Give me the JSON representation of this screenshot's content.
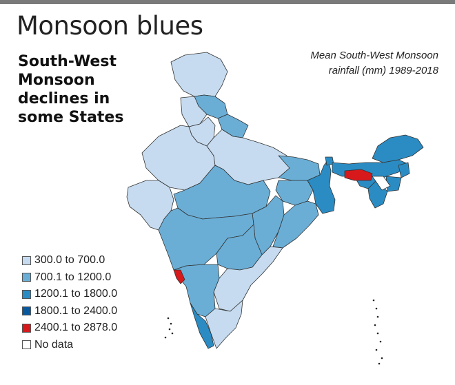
{
  "title": "Monsoon blues",
  "subtitle": "South-West Monsoon declines in some States",
  "caption": "Mean South-West Monsoon rainfall (mm) 1989-2018",
  "legend": [
    {
      "label": "300.0 to 700.0",
      "color": "#c6dbef"
    },
    {
      "label": "700.1 to 1200.0",
      "color": "#6aaed6"
    },
    {
      "label": "1200.1 to 1800.0",
      "color": "#2b8cc4"
    },
    {
      "label": "1800.1 to 2400.0",
      "color": "#08589e"
    },
    {
      "label": "2400.1 to 2878.0",
      "color": "#d7191c"
    },
    {
      "label": "No data",
      "color": "#ffffff"
    }
  ],
  "map": {
    "boundary_color": "#333333",
    "regions": [
      {
        "name": "Jammu and Kashmir",
        "class": 0
      },
      {
        "name": "Himachal Pradesh",
        "class": 1
      },
      {
        "name": "Punjab",
        "class": 0
      },
      {
        "name": "Uttarakhand",
        "class": 1
      },
      {
        "name": "Haryana",
        "class": 0
      },
      {
        "name": "Rajasthan",
        "class": 0
      },
      {
        "name": "Uttar Pradesh",
        "class": 0
      },
      {
        "name": "Gujarat",
        "class": 0
      },
      {
        "name": "Madhya Pradesh",
        "class": 1
      },
      {
        "name": "Bihar",
        "class": 1
      },
      {
        "name": "Jharkhand",
        "class": 1
      },
      {
        "name": "West Bengal",
        "class": 2
      },
      {
        "name": "Chhattisgarh",
        "class": 1
      },
      {
        "name": "Odisha",
        "class": 1
      },
      {
        "name": "Maharashtra",
        "class": 1
      },
      {
        "name": "Telangana",
        "class": 1
      },
      {
        "name": "Andhra Pradesh",
        "class": 0
      },
      {
        "name": "Karnataka",
        "class": 1
      },
      {
        "name": "Goa",
        "class": 4
      },
      {
        "name": "Kerala",
        "class": 2
      },
      {
        "name": "Tamil Nadu",
        "class": 0
      },
      {
        "name": "Sikkim",
        "class": 2
      },
      {
        "name": "Arunachal Pradesh",
        "class": 2
      },
      {
        "name": "Assam",
        "class": 2
      },
      {
        "name": "Meghalaya",
        "class": 4
      },
      {
        "name": "Nagaland",
        "class": 2
      },
      {
        "name": "Manipur",
        "class": 2
      },
      {
        "name": "Mizoram",
        "class": 2
      },
      {
        "name": "Tripura",
        "class": 5
      }
    ]
  }
}
